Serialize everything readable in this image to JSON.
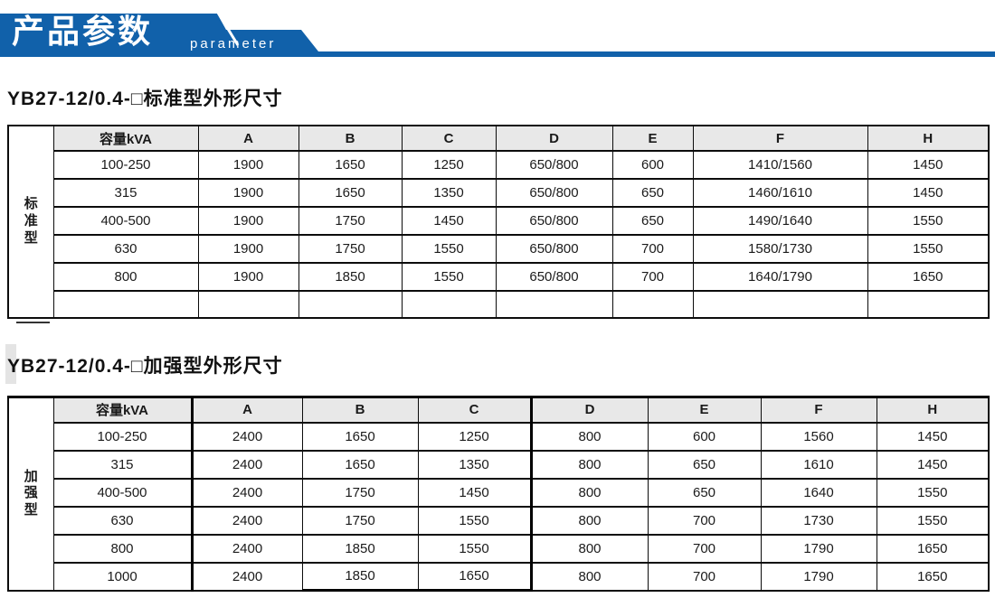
{
  "banner": {
    "title": "产品参数",
    "subtitle": "parameter"
  },
  "colors": {
    "banner_blue": "#1161aa",
    "header_row_gray": "#e8e8e8",
    "table_border": "#0c0c0c"
  },
  "tables": [
    {
      "title": "YB27-12/0.4-□标准型外形尺寸",
      "side_label": "标准型",
      "columns": [
        "容量kVA",
        "A",
        "B",
        "C",
        "D",
        "E",
        "F",
        "H"
      ],
      "rows": [
        [
          "100-250",
          "1900",
          "1650",
          "1250",
          "650/800",
          "600",
          "1410/1560",
          "1450"
        ],
        [
          "315",
          "1900",
          "1650",
          "1350",
          "650/800",
          "650",
          "1460/1610",
          "1450"
        ],
        [
          "400-500",
          "1900",
          "1750",
          "1450",
          "650/800",
          "650",
          "1490/1640",
          "1550"
        ],
        [
          "630",
          "1900",
          "1750",
          "1550",
          "650/800",
          "700",
          "1580/1730",
          "1550"
        ],
        [
          "800",
          "1900",
          "1850",
          "1550",
          "650/800",
          "700",
          "1640/1790",
          "1650"
        ],
        [
          "",
          "",
          "",
          "",
          "",
          "",
          "",
          ""
        ]
      ]
    },
    {
      "title": "YB27-12/0.4-□加强型外形尺寸",
      "side_label": "加强型",
      "columns": [
        "容量kVA",
        "A",
        "B",
        "C",
        "D",
        "E",
        "F",
        "H"
      ],
      "rows": [
        [
          "100-250",
          "2400",
          "1650",
          "1250",
          "800",
          "600",
          "1560",
          "1450"
        ],
        [
          "315",
          "2400",
          "1650",
          "1350",
          "800",
          "650",
          "1610",
          "1450"
        ],
        [
          "400-500",
          "2400",
          "1750",
          "1450",
          "800",
          "650",
          "1640",
          "1550"
        ],
        [
          "630",
          "2400",
          "1750",
          "1550",
          "800",
          "700",
          "1730",
          "1550"
        ],
        [
          "800",
          "2400",
          "1850",
          "1550",
          "800",
          "700",
          "1790",
          "1650"
        ],
        [
          "1000",
          "2400",
          "1850",
          "1650",
          "800",
          "700",
          "1790",
          "1650"
        ]
      ]
    }
  ]
}
